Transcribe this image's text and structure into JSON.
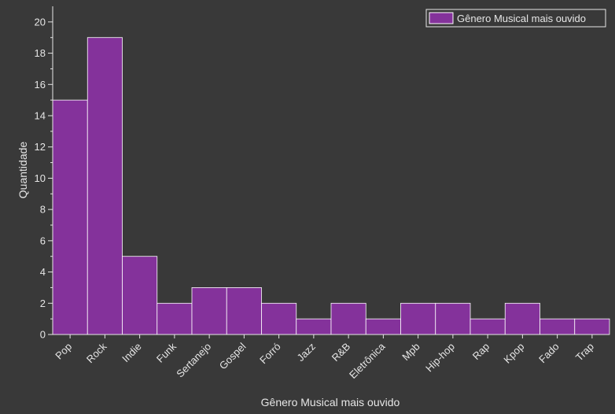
{
  "chart_data": {
    "type": "bar",
    "categories": [
      "Pop",
      "Rock",
      "Indie",
      "Funk",
      "Sertanejo",
      "Gospel",
      "Forró",
      "Jazz",
      "R&B",
      "Eletrônica",
      "Mpb",
      "Hip-hop",
      "Rap",
      "Kpop",
      "Fado",
      "Trap"
    ],
    "series": [
      {
        "name": "Gênero Musical mais ouvido",
        "values": [
          15,
          19,
          5,
          2,
          3,
          3,
          2,
          1,
          2,
          1,
          2,
          2,
          1,
          2,
          1,
          1
        ],
        "color": "#84329b"
      }
    ],
    "xlabel": "Gênero Musical mais ouvido",
    "ylabel": "Quantidade",
    "ylim": [
      0,
      21
    ],
    "yticks": [
      0,
      2,
      4,
      6,
      8,
      10,
      12,
      14,
      16,
      18,
      20
    ],
    "grid": false,
    "legend": "top-right"
  },
  "colors": {
    "background": "#393939",
    "axis": "#e6e6e6",
    "bar_fill": "#84329b",
    "bar_edge": "#ffffff"
  }
}
